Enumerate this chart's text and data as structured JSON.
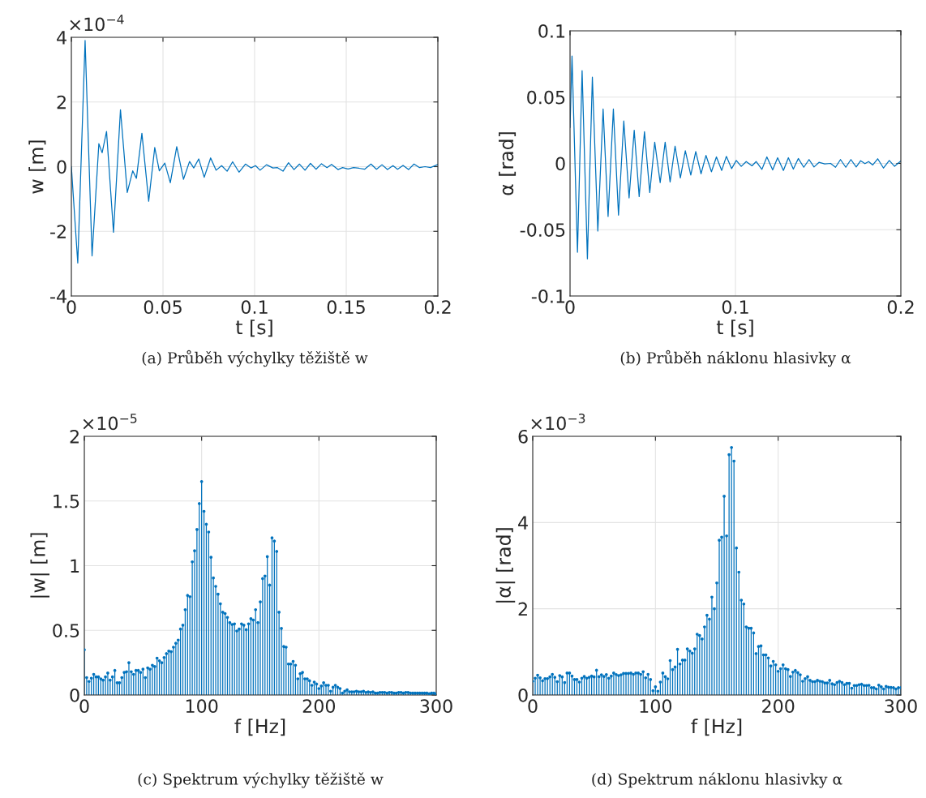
{
  "chart_data": [
    {
      "type": "line",
      "xlabel": "t [s]",
      "ylabel": "w [m]",
      "annotations": [
        "×10$^{−4}$",
        "(a) Průběh výchylky těžiště w"
      ],
      "xlim": [
        0,
        0.2
      ],
      "ylim": [
        -4,
        4
      ],
      "xticks": [
        0,
        0.05,
        0.1,
        0.15,
        0.2
      ],
      "yticks": [
        -4,
        -2,
        0,
        2,
        4
      ],
      "grid": true,
      "marker": "none",
      "line_style": "solid",
      "series": [
        {
          "color": "#0072bd",
          "x": [
            0,
            0.0035,
            0.0075,
            0.0113,
            0.015,
            0.0168,
            0.0192,
            0.023,
            0.0268,
            0.0305,
            0.0335,
            0.0355,
            0.0385,
            0.0422,
            0.0455,
            0.048,
            0.051,
            0.054,
            0.0575,
            0.0612,
            0.0645,
            0.0668,
            0.0695,
            0.0725,
            0.076,
            0.079,
            0.082,
            0.085,
            0.088,
            0.0915,
            0.095,
            0.098,
            0.1005,
            0.103,
            0.1065,
            0.11,
            0.1125,
            0.1155,
            0.1185,
            0.1215,
            0.1245,
            0.1275,
            0.1305,
            0.1335,
            0.1365,
            0.1395,
            0.142,
            0.1455,
            0.148,
            0.151,
            0.154,
            0.157,
            0.16,
            0.1635,
            0.1665,
            0.1695,
            0.1725,
            0.1755,
            0.178,
            0.181,
            0.184,
            0.187,
            0.19,
            0.193,
            0.196,
            0.2
          ],
          "values": [
            0,
            -2.98,
            3.9,
            -2.76,
            0.71,
            0.43,
            1.09,
            -2.03,
            1.76,
            -0.8,
            -0.13,
            -0.36,
            1.03,
            -1.07,
            0.59,
            -0.13,
            0.11,
            -0.5,
            0.62,
            -0.39,
            0.16,
            -0.04,
            0.24,
            -0.33,
            0.27,
            -0.11,
            0.03,
            -0.14,
            0.15,
            -0.17,
            0.08,
            -0.04,
            0.03,
            -0.11,
            0.06,
            -0.04,
            -0.03,
            -0.14,
            0.12,
            -0.09,
            0.08,
            -0.11,
            0.1,
            -0.08,
            0.09,
            -0.03,
            0.07,
            -0.09,
            -0.03,
            -0.07,
            -0.03,
            -0.05,
            -0.08,
            0.08,
            -0.08,
            0.06,
            -0.09,
            0.03,
            -0.08,
            0.04,
            -0.09,
            0.08,
            -0.03,
            0,
            -0.03,
            0.07
          ]
        }
      ]
    },
    {
      "type": "line",
      "xlabel": "t [s]",
      "ylabel": "α [rad]",
      "annotations": [
        "(b) Průběh náklonu hlasivky α"
      ],
      "xlim": [
        0,
        0.2
      ],
      "ylim": [
        -0.1,
        0.1
      ],
      "xticks": [
        0,
        0.1,
        0.2
      ],
      "yticks": [
        -0.1,
        -0.05,
        0,
        0.05,
        0.1
      ],
      "grid": true,
      "marker": "none",
      "line_style": "solid",
      "series": [
        {
          "color": "#0072bd",
          "x": [
            0,
            0.0012,
            0.0045,
            0.0073,
            0.0105,
            0.0135,
            0.0168,
            0.02,
            0.023,
            0.0262,
            0.0293,
            0.0325,
            0.0357,
            0.0388,
            0.0418,
            0.045,
            0.0482,
            0.0512,
            0.0545,
            0.0575,
            0.0605,
            0.0635,
            0.0667,
            0.0697,
            0.073,
            0.076,
            0.0792,
            0.0822,
            0.0855,
            0.0885,
            0.0917,
            0.0945,
            0.0977,
            0.1005,
            0.1035,
            0.1065,
            0.11,
            0.1125,
            0.116,
            0.119,
            0.1225,
            0.1255,
            0.129,
            0.132,
            0.135,
            0.138,
            0.1413,
            0.1445,
            0.1475,
            0.1505,
            0.154,
            0.1575,
            0.1605,
            0.1635,
            0.1667,
            0.1698,
            0.173,
            0.1757,
            0.1783,
            0.1805,
            0.183,
            0.186,
            0.1895,
            0.193,
            0.1962,
            0.2
          ],
          "values": [
            0.027,
            0.081,
            -0.067,
            0.07,
            -0.072,
            0.065,
            -0.051,
            0.041,
            -0.04,
            0.041,
            -0.039,
            0.032,
            -0.026,
            0.025,
            -0.025,
            0.024,
            -0.022,
            0.016,
            -0.0145,
            0.016,
            -0.014,
            0.013,
            -0.011,
            0.0096,
            -0.0088,
            0.009,
            -0.0078,
            0.006,
            -0.0063,
            0.0049,
            -0.0053,
            0.0053,
            -0.0039,
            0.0022,
            -0.0022,
            0.0014,
            -0.0018,
            0.0014,
            -0.0045,
            0.0049,
            -0.0049,
            0.0043,
            -0.0053,
            0.0043,
            -0.0043,
            0.0037,
            -0.0029,
            0.0029,
            -0.0027,
            0.0008,
            -0.0004,
            0,
            -0.0029,
            0.0029,
            -0.0029,
            0.0029,
            -0.0027,
            0.002,
            -0.0002,
            0.0014,
            -0.0012,
            0.0035,
            -0.0035,
            0.0022,
            -0.0022,
            0.0018
          ]
        }
      ]
    },
    {
      "type": "lollipop",
      "xlabel": "f [Hz]",
      "ylabel": "|w| [m]",
      "annotations": [
        "×10$^{−5}$",
        "(c) Spektrum výchylky těžiště w"
      ],
      "xlim": [
        0,
        300
      ],
      "ylim": [
        0,
        2
      ],
      "xticks": [
        0,
        100,
        200,
        300
      ],
      "yticks": [
        0,
        0.5,
        1,
        1.5,
        2
      ],
      "grid": true,
      "marker": "circle",
      "series": [
        {
          "color": "#0072bd",
          "x": [
            0,
            2,
            4,
            6,
            8,
            10,
            12,
            14,
            16,
            18,
            20,
            22,
            24,
            26,
            28,
            30,
            32,
            34,
            36,
            38,
            40,
            42,
            44,
            46,
            48,
            50,
            52,
            54,
            56,
            58,
            60,
            62,
            64,
            66,
            68,
            70,
            72,
            74,
            76,
            78,
            80,
            82,
            84,
            86,
            88,
            90,
            92,
            94,
            96,
            98,
            100,
            102,
            104,
            106,
            108,
            110,
            112,
            114,
            116,
            118,
            120,
            122,
            124,
            126,
            128,
            130,
            132,
            134,
            136,
            138,
            140,
            142,
            144,
            146,
            148,
            150,
            152,
            154,
            156,
            158,
            160,
            162,
            164,
            166,
            168,
            170,
            172,
            174,
            176,
            178,
            180,
            182,
            184,
            186,
            188,
            190,
            192,
            194,
            196,
            198,
            200,
            202,
            204,
            206,
            208,
            210,
            212,
            214,
            216,
            218,
            220,
            222,
            224,
            226,
            228,
            230,
            232,
            234,
            236,
            238,
            240,
            242,
            244,
            246,
            248,
            250,
            252,
            254,
            256,
            258,
            260,
            262,
            264,
            266,
            268,
            270,
            272,
            274,
            276,
            278,
            280,
            282,
            284,
            286,
            288,
            290,
            292,
            294,
            296,
            298,
            300
          ],
          "values": [
            0.35,
            0.135,
            0.105,
            0.13,
            0.16,
            0.14,
            0.14,
            0.125,
            0.115,
            0.14,
            0.17,
            0.115,
            0.14,
            0.19,
            0.095,
            0.095,
            0.135,
            0.175,
            0.18,
            0.25,
            0.18,
            0.16,
            0.19,
            0.19,
            0.175,
            0.2,
            0.135,
            0.21,
            0.2,
            0.23,
            0.22,
            0.285,
            0.265,
            0.25,
            0.29,
            0.32,
            0.34,
            0.335,
            0.37,
            0.4,
            0.425,
            0.51,
            0.54,
            0.66,
            0.77,
            0.76,
            1.03,
            1.115,
            1.28,
            1.48,
            1.65,
            1.42,
            1.32,
            1.26,
            1.065,
            0.905,
            0.84,
            0.78,
            0.705,
            0.64,
            0.63,
            0.6,
            0.56,
            0.545,
            0.55,
            0.495,
            0.51,
            0.55,
            0.54,
            0.505,
            0.55,
            0.59,
            0.58,
            0.66,
            0.56,
            0.72,
            0.9,
            0.92,
            1.07,
            0.85,
            1.215,
            1.19,
            1.11,
            0.64,
            0.515,
            0.375,
            0.37,
            0.24,
            0.24,
            0.26,
            0.23,
            0.125,
            0.165,
            0.175,
            0.125,
            0.125,
            0.11,
            0.075,
            0.1,
            0.085,
            0.05,
            0.07,
            0.095,
            0.075,
            0.075,
            0.03,
            0.06,
            0.075,
            0.06,
            0.05,
            0.015,
            0.03,
            0.04,
            0.025,
            0.025,
            0.025,
            0.03,
            0.025,
            0.025,
            0.03,
            0.02,
            0.025,
            0.02,
            0.025,
            0.015,
            0.015,
            0.02,
            0.02,
            0.02,
            0.015,
            0.02,
            0.02,
            0.015,
            0.015,
            0.02,
            0.02,
            0.015,
            0.02,
            0.02,
            0.015,
            0.015,
            0.015,
            0.015,
            0.015,
            0.015,
            0.015,
            0.015,
            0.01,
            0.015,
            0.015,
            0.01
          ]
        }
      ]
    },
    {
      "type": "lollipop",
      "xlabel": "f [Hz]",
      "ylabel": "|α| [rad]",
      "annotations": [
        "×10$^{−3}$",
        "(d) Spektrum náklonu hlasivky α"
      ],
      "xlim": [
        0,
        300
      ],
      "ylim": [
        0,
        6
      ],
      "xticks": [
        0,
        100,
        200,
        300
      ],
      "yticks": [
        0,
        2,
        4,
        6
      ],
      "grid": true,
      "marker": "circle",
      "series": [
        {
          "color": "#0072bd",
          "x": [
            0,
            2,
            4,
            6,
            8,
            10,
            12,
            14,
            16,
            18,
            20,
            22,
            24,
            26,
            28,
            30,
            32,
            34,
            36,
            38,
            40,
            42,
            44,
            46,
            48,
            50,
            52,
            54,
            56,
            58,
            60,
            62,
            64,
            66,
            68,
            70,
            72,
            74,
            76,
            78,
            80,
            82,
            84,
            86,
            88,
            90,
            92,
            94,
            96,
            98,
            100,
            102,
            104,
            106,
            108,
            110,
            112,
            114,
            116,
            118,
            120,
            122,
            124,
            126,
            128,
            130,
            132,
            134,
            136,
            138,
            140,
            142,
            144,
            146,
            148,
            150,
            152,
            154,
            156,
            158,
            160,
            162,
            164,
            166,
            168,
            170,
            172,
            174,
            176,
            178,
            180,
            182,
            184,
            186,
            188,
            190,
            192,
            194,
            196,
            198,
            200,
            202,
            204,
            206,
            208,
            210,
            212,
            214,
            216,
            218,
            220,
            222,
            224,
            226,
            228,
            230,
            232,
            234,
            236,
            238,
            240,
            242,
            244,
            246,
            248,
            250,
            252,
            254,
            256,
            258,
            260,
            262,
            264,
            266,
            268,
            270,
            272,
            274,
            276,
            278,
            280,
            282,
            284,
            286,
            288,
            290,
            292,
            294,
            296,
            298,
            300
          ],
          "values": [
            0.32,
            0.39,
            0.46,
            0.4,
            0.33,
            0.38,
            0.38,
            0.42,
            0.48,
            0.41,
            0.31,
            0.45,
            0.42,
            0.29,
            0.51,
            0.51,
            0.44,
            0.36,
            0.36,
            0.3,
            0.39,
            0.43,
            0.39,
            0.41,
            0.44,
            0.42,
            0.575,
            0.425,
            0.47,
            0.43,
            0.475,
            0.39,
            0.44,
            0.51,
            0.475,
            0.45,
            0.47,
            0.5,
            0.5,
            0.5,
            0.51,
            0.48,
            0.51,
            0.51,
            0.48,
            0.54,
            0.4,
            0.48,
            0.36,
            0.1,
            0.19,
            0.09,
            0.3,
            0.51,
            0.425,
            0.375,
            0.8,
            0.59,
            0.65,
            1.06,
            0.72,
            0.81,
            0.81,
            1.07,
            1.02,
            0.97,
            1.07,
            1.41,
            1.38,
            1.3,
            1.58,
            1.85,
            1.76,
            2.27,
            2.0,
            2.6,
            3.59,
            3.66,
            4.61,
            3.69,
            5.575,
            5.74,
            5.425,
            3.41,
            2.85,
            2.2,
            2.11,
            1.58,
            1.55,
            1.55,
            1.44,
            0.96,
            1.125,
            1.14,
            0.93,
            0.93,
            0.86,
            0.675,
            0.78,
            0.7,
            0.55,
            0.61,
            0.7,
            0.61,
            0.59,
            0.43,
            0.53,
            0.57,
            0.52,
            0.47,
            0.32,
            0.38,
            0.425,
            0.34,
            0.31,
            0.31,
            0.34,
            0.32,
            0.31,
            0.28,
            0.28,
            0.34,
            0.26,
            0.24,
            0.29,
            0.32,
            0.29,
            0.24,
            0.27,
            0.27,
            0.16,
            0.22,
            0.22,
            0.24,
            0.25,
            0.22,
            0.22,
            0.225,
            0.17,
            0.17,
            0.14,
            0.23,
            0.19,
            0.14,
            0.2,
            0.18,
            0.175,
            0.17,
            0.14,
            0.17,
            0.17
          ]
        }
      ]
    }
  ]
}
